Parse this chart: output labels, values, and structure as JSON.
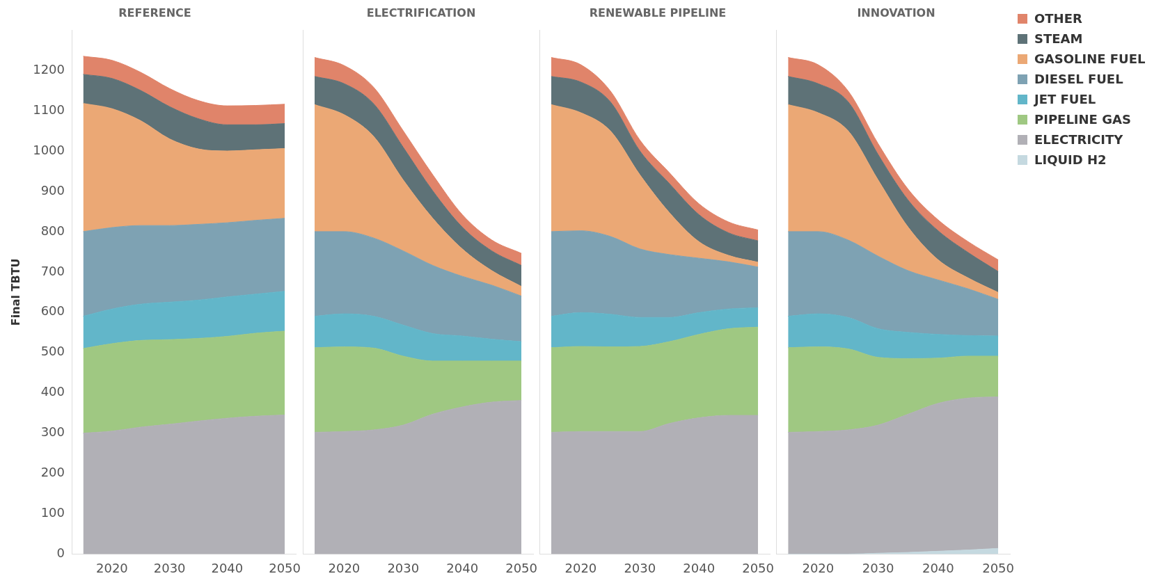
{
  "chart_data": [
    {
      "type": "area",
      "title": "REFERENCE",
      "ylabel": "Final TBTU",
      "stacked": true,
      "marker": "none",
      "legend": false,
      "grid": false,
      "x": [
        2015,
        2020,
        2025,
        2030,
        2035,
        2040,
        2045,
        2050
      ],
      "xlim": [
        2013,
        2052
      ],
      "xticks": [
        2020,
        2030,
        2040,
        2050
      ],
      "ylim": [
        0,
        1300
      ],
      "yticks": [
        0,
        100,
        200,
        300,
        400,
        500,
        600,
        700,
        800,
        900,
        1000,
        1100,
        1200
      ],
      "series": [
        {
          "color": "#b1b0b6",
          "values": [
            300,
            305,
            315,
            322,
            330,
            337,
            342,
            345
          ]
        },
        {
          "color": "#9fc882",
          "values": [
            210,
            217,
            215,
            210,
            205,
            203,
            206,
            208
          ]
        },
        {
          "color": "#62b6c9",
          "values": [
            80,
            86,
            90,
            93,
            95,
            98,
            97,
            99
          ]
        },
        {
          "color": "#7ea2b3",
          "values": [
            210,
            202,
            195,
            190,
            188,
            184,
            183,
            181
          ]
        },
        {
          "color": "#eba875",
          "values": [
            318,
            295,
            260,
            215,
            187,
            178,
            175,
            173
          ]
        },
        {
          "color": "#5e7277",
          "values": [
            72,
            75,
            75,
            80,
            75,
            65,
            62,
            62
          ]
        },
        {
          "color": "#e0846a",
          "values": [
            45,
            45,
            45,
            45,
            45,
            47,
            48,
            48
          ]
        }
      ]
    },
    {
      "type": "area",
      "title": "ELECTRIFICATION",
      "stacked": true,
      "marker": "none",
      "legend": false,
      "grid": false,
      "tick_labels": "x",
      "x": [
        2015,
        2020,
        2025,
        2030,
        2035,
        2040,
        2045,
        2050
      ],
      "xlim": [
        2013,
        2052
      ],
      "xticks": [
        2020,
        2030,
        2040,
        2050
      ],
      "ylim": [
        0,
        1300
      ],
      "yticks": [
        0,
        100,
        200,
        300,
        400,
        500,
        600,
        700,
        800,
        900,
        1000,
        1100,
        1200
      ],
      "series": [
        {
          "color": "#b1b0b6",
          "values": [
            302,
            304,
            308,
            320,
            347,
            365,
            377,
            381
          ]
        },
        {
          "color": "#9fc882",
          "values": [
            210,
            210,
            203,
            171,
            132,
            114,
            102,
            98
          ]
        },
        {
          "color": "#62b6c9",
          "values": [
            78,
            82,
            79,
            77,
            68,
            62,
            54,
            48
          ]
        },
        {
          "color": "#7ea2b3",
          "values": [
            210,
            204,
            194,
            184,
            169,
            148,
            134,
            113
          ]
        },
        {
          "color": "#eba875",
          "values": [
            315,
            290,
            252,
            176,
            117,
            68,
            36,
            24
          ]
        },
        {
          "color": "#5e7277",
          "values": [
            70,
            77,
            81,
            81,
            68,
            54,
            49,
            52
          ]
        },
        {
          "color": "#e0846a",
          "values": [
            47,
            45,
            41,
            41,
            40,
            31,
            27,
            30
          ]
        }
      ]
    },
    {
      "type": "area",
      "title": "RENEWABLE PIPELINE",
      "stacked": true,
      "marker": "none",
      "legend": false,
      "grid": false,
      "tick_labels": "x",
      "x": [
        2015,
        2020,
        2025,
        2030,
        2035,
        2040,
        2045,
        2050
      ],
      "xlim": [
        2013,
        2052
      ],
      "xticks": [
        2020,
        2030,
        2040,
        2050
      ],
      "ylim": [
        0,
        1300
      ],
      "yticks": [
        0,
        100,
        200,
        300,
        400,
        500,
        600,
        700,
        800,
        900,
        1000,
        1100,
        1200
      ],
      "series": [
        {
          "color": "#b1b0b6",
          "values": [
            302,
            304,
            304,
            304,
            324,
            338,
            344,
            344
          ]
        },
        {
          "color": "#9fc882",
          "values": [
            210,
            211,
            210,
            211,
            203,
            207,
            215,
            219
          ]
        },
        {
          "color": "#62b6c9",
          "values": [
            78,
            84,
            81,
            72,
            60,
            54,
            49,
            48
          ]
        },
        {
          "color": "#7ea2b3",
          "values": [
            210,
            203,
            193,
            170,
            156,
            135,
            117,
            101
          ]
        },
        {
          "color": "#eba875",
          "values": [
            315,
            293,
            262,
            184,
            104,
            41,
            16,
            12
          ]
        },
        {
          "color": "#5e7277",
          "values": [
            70,
            76,
            72,
            59,
            72,
            67,
            56,
            53
          ]
        },
        {
          "color": "#e0846a",
          "values": [
            47,
            43,
            27,
            27,
            27,
            27,
            27,
            27
          ]
        }
      ]
    },
    {
      "type": "area",
      "title": "INNOVATION",
      "stacked": true,
      "marker": "none",
      "legend": "right",
      "grid": false,
      "tick_labels": "x",
      "x": [
        2015,
        2020,
        2025,
        2030,
        2035,
        2040,
        2045,
        2050
      ],
      "xlim": [
        2013,
        2052
      ],
      "xticks": [
        2020,
        2030,
        2040,
        2050
      ],
      "ylim": [
        0,
        1300
      ],
      "yticks": [
        0,
        100,
        200,
        300,
        400,
        500,
        600,
        700,
        800,
        900,
        1000,
        1100,
        1200
      ],
      "series": [
        {
          "name": "LIQUID H2",
          "color": "#c5d9e0",
          "values": [
            0,
            0,
            0,
            2,
            4,
            7,
            10,
            14
          ]
        },
        {
          "name": "ELECTRICITY",
          "color": "#b1b0b6",
          "values": [
            302,
            304,
            308,
            318,
            343,
            367,
            377,
            376
          ]
        },
        {
          "name": "PIPELINE GAS",
          "color": "#9fc882",
          "values": [
            210,
            210,
            201,
            168,
            138,
            112,
            104,
            101
          ]
        },
        {
          "name": "JET FUEL",
          "color": "#62b6c9",
          "values": [
            78,
            82,
            78,
            71,
            65,
            59,
            51,
            50
          ]
        },
        {
          "name": "DIESEL FUEL",
          "color": "#7ea2b3",
          "values": [
            210,
            204,
            192,
            180,
            153,
            135,
            116,
            91
          ]
        },
        {
          "name": "GASOLINE FUEL",
          "color": "#eba875",
          "values": [
            315,
            295,
            271,
            189,
            108,
            50,
            27,
            17
          ]
        },
        {
          "name": "STEAM",
          "color": "#5e7277",
          "values": [
            70,
            72,
            72,
            63,
            67,
            72,
            63,
            52
          ]
        },
        {
          "name": "OTHER",
          "color": "#e0846a",
          "values": [
            47,
            47,
            27,
            27,
            27,
            27,
            27,
            29
          ]
        }
      ]
    }
  ]
}
